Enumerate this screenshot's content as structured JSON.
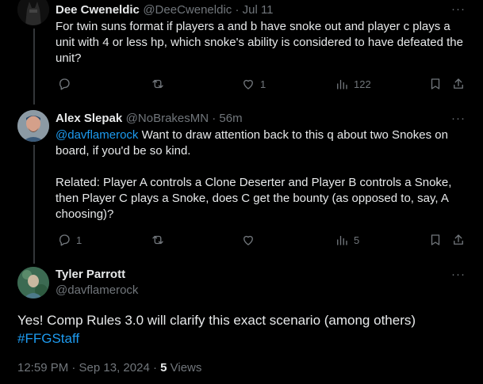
{
  "tweet1": {
    "name": "Dee Cweneldic",
    "handle": "@DeeCweneldic · Jul 11",
    "text": "For twin suns format if players a and b have snoke out and player c plays a unit with 4 or less hp, which snoke's ability is considered to have defeated the unit?",
    "actions": {
      "reply": "",
      "retweet": "",
      "like": "1",
      "views": "122"
    }
  },
  "tweet2": {
    "name": "Alex Slepak",
    "handle": "@NoBrakesMN · 56m",
    "mention": "@davflamerock",
    "text_after_mention": " Want to draw attention back to this q about two Snokes on board, if you'd be so kind.",
    "paragraph2": "Related: Player A controls a Clone Deserter and Player B controls a Snoke, then Player C plays a Snoke, does C get the bounty (as opposed to, say, A choosing)?",
    "actions": {
      "reply": "1",
      "retweet": "",
      "like": "",
      "views": "5"
    }
  },
  "tweet3": {
    "name": "Tyler Parrott",
    "handle": "@davflamerock",
    "text": "Yes! Comp Rules 3.0 will clarify this exact scenario (among others)",
    "hashtag": "#FFGStaff",
    "timestamp": "12:59 PM · Sep 13, 2024 · ",
    "views_count": "5",
    "views_label": " Views"
  },
  "more_label": "···"
}
